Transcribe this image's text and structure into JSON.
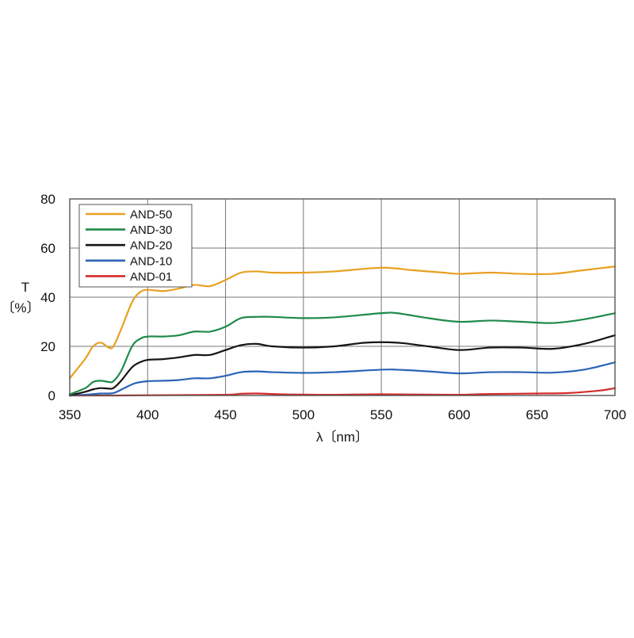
{
  "chart_data": {
    "type": "line",
    "xlabel": "λ〔nm〕",
    "ylabel_top": "T",
    "ylabel_bottom": "〔%〕",
    "xlim": [
      350,
      700
    ],
    "ylim": [
      0,
      80
    ],
    "x_ticks": [
      "350",
      "400",
      "450",
      "500",
      "550",
      "600",
      "650",
      "700"
    ],
    "y_ticks": [
      "0",
      "20",
      "40",
      "60",
      "80"
    ],
    "grid": true,
    "legend_position": "top-left",
    "series": [
      {
        "name": "AND-50",
        "color": "#e8a020",
        "points": [
          [
            350,
            7
          ],
          [
            360,
            15
          ],
          [
            365,
            20
          ],
          [
            370,
            21.5
          ],
          [
            375,
            19.5
          ],
          [
            378,
            20
          ],
          [
            383,
            27
          ],
          [
            390,
            38
          ],
          [
            395,
            42
          ],
          [
            400,
            43
          ],
          [
            410,
            42.5
          ],
          [
            420,
            43.5
          ],
          [
            430,
            45
          ],
          [
            440,
            44.5
          ],
          [
            450,
            47
          ],
          [
            460,
            50
          ],
          [
            470,
            50.5
          ],
          [
            480,
            50
          ],
          [
            500,
            50
          ],
          [
            520,
            50.5
          ],
          [
            550,
            52
          ],
          [
            570,
            51
          ],
          [
            590,
            50
          ],
          [
            600,
            49.5
          ],
          [
            620,
            50
          ],
          [
            640,
            49.5
          ],
          [
            660,
            49.5
          ],
          [
            680,
            51
          ],
          [
            700,
            52.5
          ]
        ]
      },
      {
        "name": "AND-30",
        "color": "#1e8a4a",
        "points": [
          [
            350,
            0.5
          ],
          [
            360,
            3
          ],
          [
            365,
            5.5
          ],
          [
            370,
            6
          ],
          [
            375,
            5.5
          ],
          [
            378,
            5.8
          ],
          [
            383,
            10
          ],
          [
            390,
            20
          ],
          [
            395,
            23
          ],
          [
            400,
            24
          ],
          [
            410,
            24
          ],
          [
            420,
            24.5
          ],
          [
            430,
            26
          ],
          [
            440,
            26
          ],
          [
            450,
            28
          ],
          [
            460,
            31.5
          ],
          [
            470,
            32
          ],
          [
            480,
            32
          ],
          [
            500,
            31.5
          ],
          [
            520,
            31.8
          ],
          [
            550,
            33.5
          ],
          [
            560,
            33.5
          ],
          [
            580,
            31.5
          ],
          [
            600,
            30
          ],
          [
            620,
            30.5
          ],
          [
            640,
            30
          ],
          [
            660,
            29.5
          ],
          [
            680,
            31
          ],
          [
            700,
            33.5
          ]
        ]
      },
      {
        "name": "AND-20",
        "color": "#151515",
        "points": [
          [
            350,
            0
          ],
          [
            360,
            1.5
          ],
          [
            365,
            2.5
          ],
          [
            370,
            3
          ],
          [
            375,
            2.8
          ],
          [
            378,
            3
          ],
          [
            383,
            6
          ],
          [
            390,
            11.5
          ],
          [
            395,
            13.5
          ],
          [
            400,
            14.5
          ],
          [
            410,
            14.8
          ],
          [
            420,
            15.5
          ],
          [
            430,
            16.5
          ],
          [
            440,
            16.5
          ],
          [
            450,
            18.5
          ],
          [
            460,
            20.5
          ],
          [
            470,
            21
          ],
          [
            480,
            20
          ],
          [
            500,
            19.5
          ],
          [
            520,
            20
          ],
          [
            540,
            21.5
          ],
          [
            560,
            21.5
          ],
          [
            580,
            20
          ],
          [
            600,
            18.5
          ],
          [
            620,
            19.5
          ],
          [
            640,
            19.5
          ],
          [
            660,
            19
          ],
          [
            680,
            21
          ],
          [
            700,
            24.5
          ]
        ]
      },
      {
        "name": "AND-10",
        "color": "#2a64b6",
        "points": [
          [
            350,
            0
          ],
          [
            360,
            0.3
          ],
          [
            370,
            0.8
          ],
          [
            378,
            1
          ],
          [
            385,
            3
          ],
          [
            392,
            5
          ],
          [
            400,
            5.8
          ],
          [
            410,
            6
          ],
          [
            420,
            6.3
          ],
          [
            430,
            7
          ],
          [
            440,
            7
          ],
          [
            450,
            8
          ],
          [
            460,
            9.5
          ],
          [
            470,
            9.8
          ],
          [
            480,
            9.5
          ],
          [
            500,
            9.2
          ],
          [
            520,
            9.5
          ],
          [
            550,
            10.5
          ],
          [
            560,
            10.5
          ],
          [
            580,
            9.8
          ],
          [
            600,
            9
          ],
          [
            620,
            9.5
          ],
          [
            640,
            9.5
          ],
          [
            660,
            9.3
          ],
          [
            680,
            10.5
          ],
          [
            700,
            13.5
          ]
        ]
      },
      {
        "name": "AND-01",
        "color": "#d42a2a",
        "points": [
          [
            350,
            0
          ],
          [
            380,
            0
          ],
          [
            400,
            0.1
          ],
          [
            450,
            0.3
          ],
          [
            460,
            0.7
          ],
          [
            470,
            0.8
          ],
          [
            490,
            0.4
          ],
          [
            520,
            0.3
          ],
          [
            550,
            0.5
          ],
          [
            570,
            0.4
          ],
          [
            600,
            0.3
          ],
          [
            620,
            0.6
          ],
          [
            650,
            0.8
          ],
          [
            670,
            1
          ],
          [
            690,
            2
          ],
          [
            700,
            3
          ]
        ]
      }
    ]
  }
}
